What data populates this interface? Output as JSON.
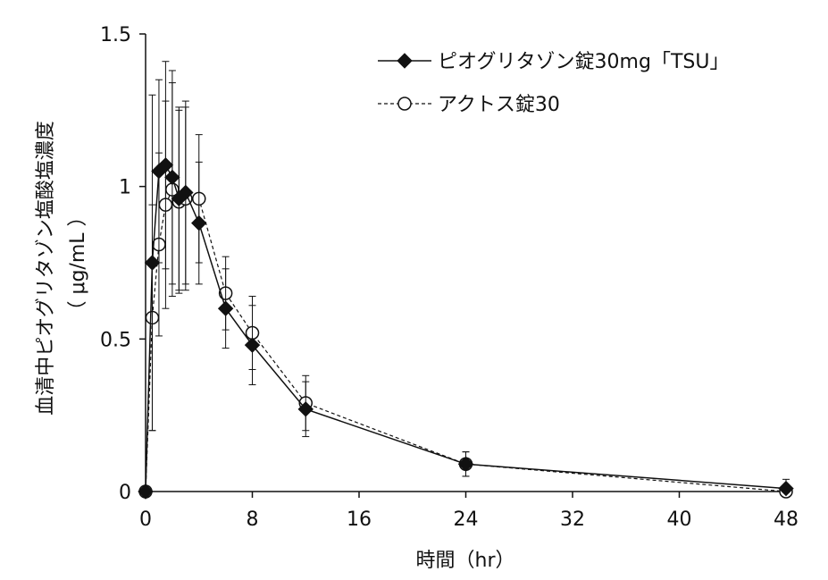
{
  "chart_data": {
    "type": "line",
    "title": "",
    "xlabel": "時間（hr）",
    "ylabel": "血清中ピオグリタゾン塩酸塩濃度",
    "ylabel_unit": "（ μg/mL ）",
    "xlim": [
      0,
      48
    ],
    "ylim": [
      0,
      1.5
    ],
    "x_ticks": [
      0,
      8,
      16,
      24,
      32,
      40,
      48
    ],
    "y_ticks": [
      0,
      0.5,
      1,
      1.5
    ],
    "x_tick_labels": [
      "0",
      "8",
      "16",
      "24",
      "32",
      "40",
      "48"
    ],
    "y_tick_labels": [
      "0",
      "0.5",
      "1",
      "1.5"
    ],
    "grid": false,
    "legend_position": "top-right",
    "series": [
      {
        "name": "ピオグリタゾン錠30mg「TSU」",
        "marker": "diamond",
        "marker_fill": "#111111",
        "line_style": "solid",
        "color": "#111111",
        "x": [
          0,
          0.5,
          1,
          1.5,
          2,
          2.5,
          3,
          4,
          6,
          8,
          12,
          24,
          48
        ],
        "y": [
          0,
          0.75,
          1.05,
          1.07,
          1.03,
          0.96,
          0.98,
          0.88,
          0.6,
          0.48,
          0.27,
          0.09,
          0.01
        ],
        "err": [
          0,
          0.55,
          0.3,
          0.34,
          0.35,
          0.3,
          0.3,
          0.2,
          0.13,
          0.13,
          0.09,
          0.04,
          0.03
        ]
      },
      {
        "name": "アクトス錠30",
        "marker": "circle",
        "marker_fill": "#ffffff",
        "line_style": "dashed",
        "color": "#111111",
        "x": [
          0,
          0.5,
          1,
          1.5,
          2,
          2.5,
          3,
          4,
          6,
          8,
          12,
          24,
          48
        ],
        "y": [
          0,
          0.57,
          0.81,
          0.94,
          0.99,
          0.95,
          0.96,
          0.96,
          0.65,
          0.52,
          0.29,
          0.09,
          0.0
        ],
        "err": [
          0,
          0.37,
          0.3,
          0.34,
          0.35,
          0.3,
          0.3,
          0.21,
          0.12,
          0.12,
          0.09,
          0.04,
          0.02
        ]
      }
    ]
  }
}
